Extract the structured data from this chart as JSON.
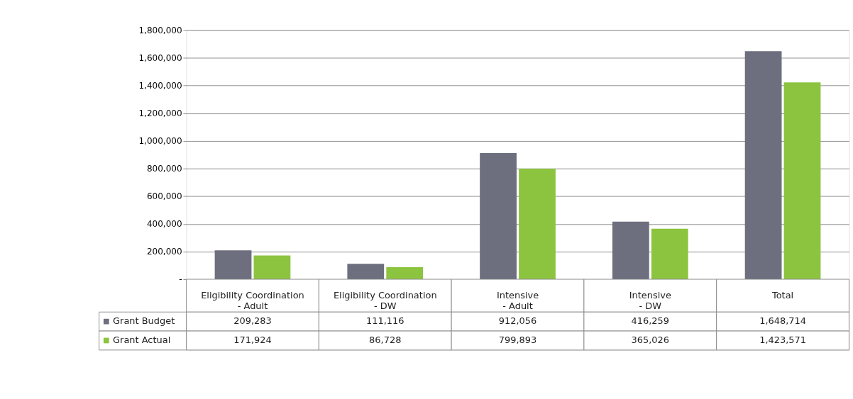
{
  "chart_data": {
    "type": "bar",
    "categories": [
      "Eligibility Coordination - Adult",
      "Eligibility Coordination - DW",
      "Intensive - Adult",
      "Intensive - DW",
      "Total"
    ],
    "series": [
      {
        "name": "Grant Budget",
        "color": "#6d6e7e",
        "values": [
          209283,
          111116,
          912056,
          416259,
          1648714
        ],
        "value_labels": [
          "209,283",
          "111,116",
          "912,056",
          "416,259",
          "1,648,714"
        ]
      },
      {
        "name": "Grant Actual",
        "color": "#8cc43f",
        "values": [
          171924,
          86728,
          799893,
          365026,
          1423571
        ],
        "value_labels": [
          "171,924",
          "86,728",
          "799,893",
          "365,026",
          "1,423,571"
        ]
      }
    ],
    "ylim": [
      0,
      1800000
    ],
    "yticks": [
      {
        "value": 0,
        "label": "-"
      },
      {
        "value": 200000,
        "label": "200,000"
      },
      {
        "value": 400000,
        "label": "400,000"
      },
      {
        "value": 600000,
        "label": "600,000"
      },
      {
        "value": 800000,
        "label": "800,000"
      },
      {
        "value": 1000000,
        "label": "1,000,000"
      },
      {
        "value": 1200000,
        "label": "1,200,000"
      },
      {
        "value": 1400000,
        "label": "1,400,000"
      },
      {
        "value": 1600000,
        "label": "1,600,000"
      },
      {
        "value": 1800000,
        "label": "1,800,000"
      }
    ],
    "grid": "y",
    "legend": "bottom left"
  }
}
